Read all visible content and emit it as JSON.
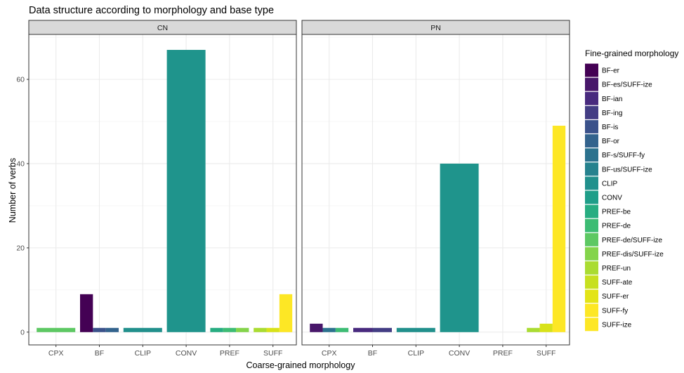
{
  "chart_data": {
    "type": "bar",
    "title": "Data structure according to morphology and base type",
    "xlabel": "Coarse-grained morphology",
    "ylabel": "Number of verbs",
    "ylim": [
      0,
      70
    ],
    "yticks": [
      0,
      20,
      40,
      60
    ],
    "grid": true,
    "categories": [
      "CPX",
      "BF",
      "CLIP",
      "CONV",
      "PREF",
      "SUFF"
    ],
    "legend": {
      "title": "Fine-grained morphology",
      "placement": "right",
      "entries": [
        {
          "name": "BF-er",
          "color": "#440154"
        },
        {
          "name": "BF-es/SUFF-ize",
          "color": "#48176A"
        },
        {
          "name": "BF-ian",
          "color": "#482A7E"
        },
        {
          "name": "BF-ing",
          "color": "#433D84"
        },
        {
          "name": "BF-is",
          "color": "#3B528B"
        },
        {
          "name": "BF-or",
          "color": "#33638D"
        },
        {
          "name": "BF-s/SUFF-fy",
          "color": "#2C728E"
        },
        {
          "name": "BF-us/SUFF-ize",
          "color": "#26828E"
        },
        {
          "name": "CLIP",
          "color": "#21908C"
        },
        {
          "name": "CONV",
          "color": "#1F9E89"
        },
        {
          "name": "PREF-be",
          "color": "#27AD81"
        },
        {
          "name": "PREF-de",
          "color": "#3DBC74"
        },
        {
          "name": "PREF-de/SUFF-ize",
          "color": "#5DC863"
        },
        {
          "name": "PREF-dis/SUFF-ize",
          "color": "#84D44B"
        },
        {
          "name": "PREF-un",
          "color": "#AADC32"
        },
        {
          "name": "SUFF-ate",
          "color": "#C7E020"
        },
        {
          "name": "SUFF-er",
          "color": "#E3E418"
        },
        {
          "name": "SUFF-fy",
          "color": "#FDE725"
        },
        {
          "name": "SUFF-ize",
          "color": "#FDE725"
        }
      ]
    },
    "panels": [
      {
        "label": "CN",
        "bars": [
          {
            "category": "CPX",
            "subtype": "PREF-dis/SUFF-ize",
            "value": 1,
            "color": "#5DC863",
            "slot": 0,
            "of": 1
          },
          {
            "category": "BF",
            "subtype": "BF-er",
            "value": 9,
            "color": "#440154",
            "slot": 0,
            "of": 3
          },
          {
            "category": "BF",
            "subtype": "BF-is",
            "value": 1,
            "color": "#3B528B",
            "slot": 1,
            "of": 3
          },
          {
            "category": "BF",
            "subtype": "BF-or",
            "value": 1,
            "color": "#33638D",
            "slot": 2,
            "of": 3
          },
          {
            "category": "CLIP",
            "subtype": "CLIP",
            "value": 1,
            "color": "#21908C",
            "slot": 0,
            "of": 1
          },
          {
            "category": "CONV",
            "subtype": "CONV",
            "value": 67,
            "color": "#1F948C",
            "slot": 0,
            "of": 1
          },
          {
            "category": "PREF",
            "subtype": "PREF-be",
            "value": 1,
            "color": "#27AD81",
            "slot": 0,
            "of": 3
          },
          {
            "category": "PREF",
            "subtype": "PREF-de",
            "value": 1,
            "color": "#3DBC74",
            "slot": 1,
            "of": 3
          },
          {
            "category": "PREF",
            "subtype": "PREF-un",
            "value": 1,
            "color": "#84D44B",
            "slot": 2,
            "of": 3
          },
          {
            "category": "SUFF",
            "subtype": "SUFF-ate",
            "value": 1,
            "color": "#AADC32",
            "slot": 0,
            "of": 3
          },
          {
            "category": "SUFF",
            "subtype": "SUFF-er",
            "value": 1,
            "color": "#D8E219",
            "slot": 1,
            "of": 3
          },
          {
            "category": "SUFF",
            "subtype": "SUFF-ize",
            "value": 9,
            "color": "#FDE725",
            "slot": 2,
            "of": 3
          }
        ]
      },
      {
        "label": "PN",
        "bars": [
          {
            "category": "CPX",
            "subtype": "BF-es/SUFF-ize",
            "value": 2,
            "color": "#48176A",
            "slot": 0,
            "of": 3
          },
          {
            "category": "CPX",
            "subtype": "BF-s/SUFF-fy",
            "value": 1,
            "color": "#2C728E",
            "slot": 1,
            "of": 3
          },
          {
            "category": "CPX",
            "subtype": "PREF-de/SUFF-ize",
            "value": 1,
            "color": "#3DBC74",
            "slot": 2,
            "of": 3
          },
          {
            "category": "BF",
            "subtype": "BF-ian",
            "value": 1,
            "color": "#482A7E",
            "slot": 0,
            "of": 2
          },
          {
            "category": "BF",
            "subtype": "BF-ing",
            "value": 1,
            "color": "#433D84",
            "slot": 1,
            "of": 2
          },
          {
            "category": "CLIP",
            "subtype": "CLIP",
            "value": 1,
            "color": "#21908C",
            "slot": 0,
            "of": 1
          },
          {
            "category": "CONV",
            "subtype": "CONV",
            "value": 40,
            "color": "#1F948C",
            "slot": 0,
            "of": 1
          },
          {
            "category": "SUFF",
            "subtype": "SUFF-ate",
            "value": 1,
            "color": "#AADC32",
            "slot": 0,
            "of": 3
          },
          {
            "category": "SUFF",
            "subtype": "SUFF-fy",
            "value": 2,
            "color": "#D8E219",
            "slot": 1,
            "of": 3
          },
          {
            "category": "SUFF",
            "subtype": "SUFF-ize",
            "value": 49,
            "color": "#FDE725",
            "slot": 2,
            "of": 3
          }
        ]
      }
    ]
  }
}
